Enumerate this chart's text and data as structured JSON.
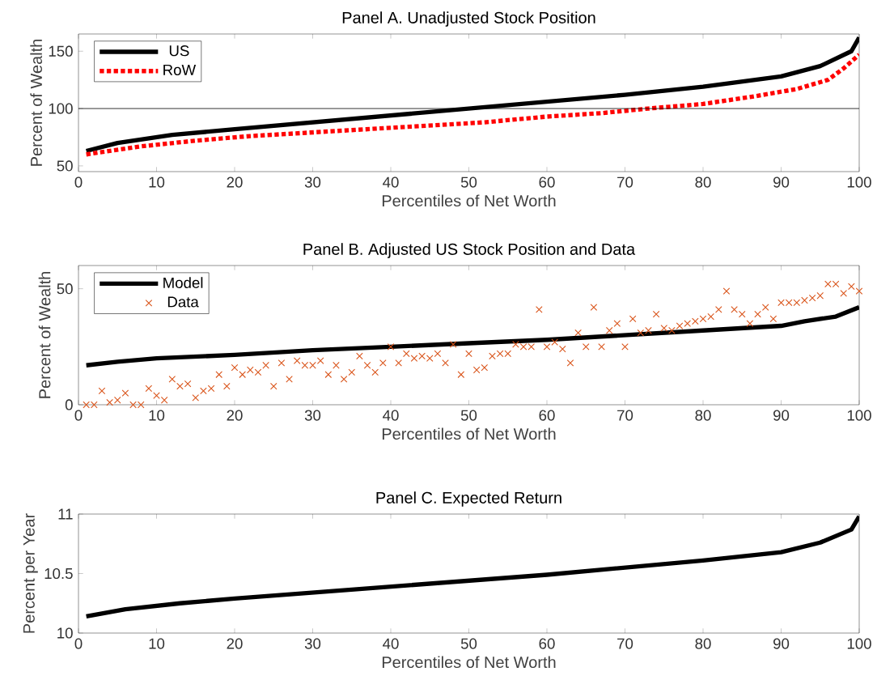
{
  "chart_data": [
    {
      "type": "line",
      "title": "Panel A. Unadjusted Stock Position",
      "xlabel": "Percentiles of Net Worth",
      "ylabel": "Percent of Wealth",
      "xlim": [
        0,
        100
      ],
      "ylim": [
        45,
        165
      ],
      "xticks": [
        0,
        10,
        20,
        30,
        40,
        50,
        60,
        70,
        80,
        90,
        100
      ],
      "yticks": [
        50,
        100,
        150
      ],
      "grid": false,
      "legend": "top left",
      "marker": "none",
      "ref_lines": [
        {
          "axis": "y",
          "value": 100,
          "color": "#000000"
        }
      ],
      "series": [
        {
          "name": "US",
          "color": "#000000",
          "line_style": "solid",
          "x": [
            1,
            5,
            12,
            20,
            30,
            40,
            50,
            60,
            70,
            80,
            90,
            95,
            99,
            100
          ],
          "values": [
            63,
            70,
            77,
            82,
            88,
            94,
            100,
            106,
            112,
            119,
            128,
            137,
            150,
            162
          ]
        },
        {
          "name": "RoW",
          "color": "#ff0000",
          "line_style": "dotted",
          "x": [
            1,
            8,
            15,
            22,
            32,
            42,
            52,
            60,
            67,
            73,
            80,
            86,
            92,
            96,
            98,
            100
          ],
          "values": [
            60,
            67,
            72,
            76,
            80,
            84,
            88,
            93,
            96,
            100,
            104,
            110,
            117,
            125,
            135,
            147
          ]
        }
      ]
    },
    {
      "type": "line",
      "title": "Panel B. Adjusted US Stock Position and Data",
      "xlabel": "Percentiles of Net Worth",
      "ylabel": "Percent of Wealth",
      "xlim": [
        0,
        100
      ],
      "ylim": [
        0,
        60
      ],
      "xticks": [
        0,
        10,
        20,
        30,
        40,
        50,
        60,
        70,
        80,
        90,
        100
      ],
      "yticks": [
        0,
        50
      ],
      "grid": false,
      "legend": "top left",
      "series": [
        {
          "name": "Model",
          "type": "line",
          "color": "#000000",
          "line_style": "solid",
          "marker": "none",
          "x": [
            1,
            5,
            10,
            20,
            30,
            40,
            50,
            60,
            70,
            80,
            90,
            93,
            97,
            100
          ],
          "values": [
            17,
            18.5,
            20,
            21.5,
            23.5,
            25,
            26.5,
            28,
            30,
            32,
            34,
            36,
            38,
            42
          ]
        },
        {
          "name": "Data",
          "type": "scatter",
          "color": "#d95319",
          "marker": "cross",
          "x": [
            1,
            2,
            3,
            4,
            5,
            6,
            7,
            8,
            9,
            10,
            11,
            12,
            13,
            14,
            15,
            16,
            17,
            18,
            19,
            20,
            21,
            22,
            23,
            24,
            25,
            26,
            27,
            28,
            29,
            30,
            31,
            32,
            33,
            34,
            35,
            36,
            37,
            38,
            39,
            40,
            41,
            42,
            43,
            44,
            45,
            46,
            47,
            48,
            49,
            50,
            51,
            52,
            53,
            54,
            55,
            56,
            57,
            58,
            59,
            60,
            61,
            62,
            63,
            64,
            65,
            66,
            67,
            68,
            69,
            70,
            71,
            72,
            73,
            74,
            75,
            76,
            77,
            78,
            79,
            80,
            81,
            82,
            83,
            84,
            85,
            86,
            87,
            88,
            89,
            90,
            91,
            92,
            93,
            94,
            95,
            96,
            97,
            98,
            99,
            100
          ],
          "values": [
            0,
            0,
            6,
            1,
            2,
            5,
            0,
            0,
            7,
            4,
            2,
            11,
            8,
            9,
            3,
            6,
            7,
            13,
            8,
            16,
            13,
            15,
            14,
            17,
            8,
            18,
            11,
            19,
            17,
            17,
            19,
            13,
            17,
            11,
            14,
            21,
            17,
            14,
            18,
            25,
            18,
            22,
            20,
            21,
            20,
            22,
            18,
            26,
            13,
            22,
            15,
            16,
            21,
            22,
            22,
            26,
            25,
            25,
            41,
            25,
            27,
            24,
            18,
            31,
            25,
            42,
            25,
            32,
            35,
            25,
            37,
            31,
            32,
            39,
            33,
            32,
            34,
            35,
            36,
            37,
            38,
            41,
            49,
            41,
            39,
            35,
            39,
            42,
            37,
            44,
            44,
            44,
            45,
            46,
            47,
            52,
            52,
            48,
            51,
            49
          ]
        }
      ]
    },
    {
      "type": "line",
      "title": "Panel C. Expected Return",
      "xlabel": "Percentiles of Net Worth",
      "ylabel": "Percent per Year",
      "xlim": [
        0,
        100
      ],
      "ylim": [
        10,
        11
      ],
      "xticks": [
        0,
        10,
        20,
        30,
        40,
        50,
        60,
        70,
        80,
        90,
        100
      ],
      "yticks": [
        10,
        10.5,
        11
      ],
      "grid": false,
      "legend": false,
      "marker": "none",
      "line_style": "solid",
      "series": [
        {
          "color": "#000000",
          "x": [
            1,
            6,
            13,
            20,
            30,
            40,
            50,
            60,
            70,
            80,
            90,
            95,
            99,
            100
          ],
          "values": [
            10.14,
            10.2,
            10.25,
            10.29,
            10.34,
            10.39,
            10.44,
            10.49,
            10.55,
            10.61,
            10.68,
            10.76,
            10.87,
            10.98
          ]
        }
      ]
    }
  ]
}
